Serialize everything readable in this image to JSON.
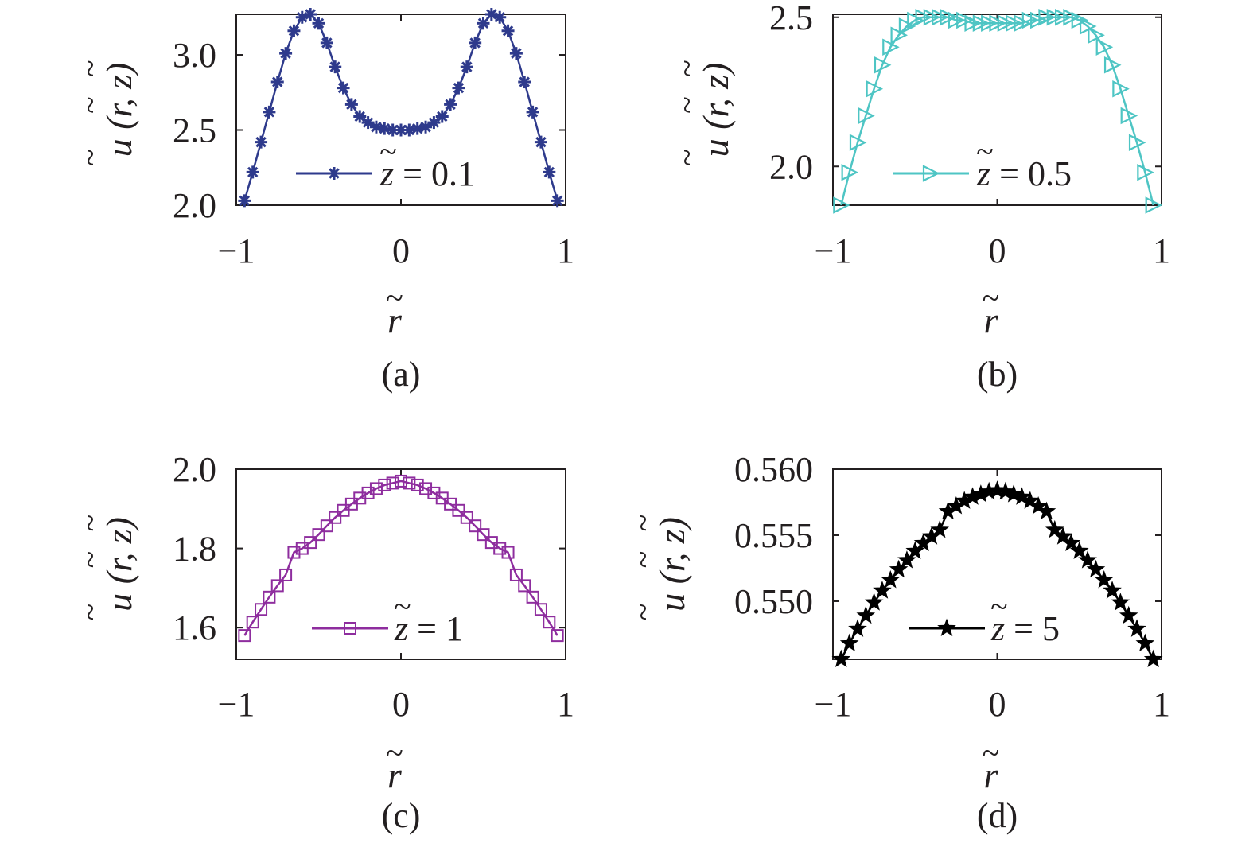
{
  "chart_data": [
    {
      "id": "a",
      "type": "line",
      "caption": "(a)",
      "xlabel": "r",
      "ylabel": "u (r, z)",
      "xlim": [
        -1,
        1
      ],
      "ylim": [
        2.0,
        3.27
      ],
      "xticks": [
        -1,
        0,
        1
      ],
      "xtick_labels": [
        "−1",
        "0",
        "1"
      ],
      "yticks": [
        2.0,
        2.5,
        3.0
      ],
      "ytick_labels": [
        "2.0",
        "2.5",
        "3.0"
      ],
      "legend_position": "bottom-right",
      "series": [
        {
          "name": "z = 0.1",
          "legend_var": "z",
          "legend_rest": " = 0.1",
          "color": "#2e3a8c",
          "marker": "asterisk",
          "x": [
            -0.95,
            -0.9,
            -0.85,
            -0.8,
            -0.75,
            -0.7,
            -0.65,
            -0.6,
            -0.55,
            -0.5,
            -0.45,
            -0.4,
            -0.35,
            -0.3,
            -0.25,
            -0.2,
            -0.15,
            -0.1,
            -0.05,
            0,
            0.05,
            0.1,
            0.15,
            0.2,
            0.25,
            0.3,
            0.35,
            0.4,
            0.45,
            0.5,
            0.55,
            0.6,
            0.65,
            0.7,
            0.75,
            0.8,
            0.85,
            0.9,
            0.95
          ],
          "y": [
            2.03,
            2.22,
            2.42,
            2.62,
            2.82,
            3.01,
            3.16,
            3.25,
            3.27,
            3.21,
            3.08,
            2.92,
            2.78,
            2.67,
            2.59,
            2.55,
            2.52,
            2.51,
            2.5,
            2.5,
            2.5,
            2.51,
            2.52,
            2.55,
            2.59,
            2.67,
            2.78,
            2.92,
            3.08,
            3.21,
            3.27,
            3.25,
            3.16,
            3.01,
            2.82,
            2.62,
            2.42,
            2.22,
            2.03
          ]
        }
      ]
    },
    {
      "id": "b",
      "type": "line",
      "caption": "(b)",
      "xlabel": "r",
      "ylabel": "u (r, z)",
      "xlim": [
        -1,
        1
      ],
      "ylim": [
        1.87,
        2.51
      ],
      "xticks": [
        -1,
        0,
        1
      ],
      "xtick_labels": [
        "−1",
        "0",
        "1"
      ],
      "yticks": [
        2.0,
        2.5
      ],
      "ytick_labels": [
        "2.0",
        "2.5"
      ],
      "legend_position": "bottom-right",
      "series": [
        {
          "name": "z = 0.5",
          "legend_var": "z",
          "legend_rest": " = 0.5",
          "color": "#4ec5c4",
          "marker": "triangle-right",
          "x": [
            -0.95,
            -0.9,
            -0.85,
            -0.8,
            -0.75,
            -0.7,
            -0.65,
            -0.6,
            -0.55,
            -0.5,
            -0.45,
            -0.4,
            -0.35,
            -0.3,
            -0.25,
            -0.2,
            -0.15,
            -0.1,
            -0.05,
            0,
            0.05,
            0.1,
            0.15,
            0.2,
            0.25,
            0.3,
            0.35,
            0.4,
            0.45,
            0.5,
            0.55,
            0.6,
            0.65,
            0.7,
            0.75,
            0.8,
            0.85,
            0.9,
            0.95
          ],
          "y": [
            1.87,
            1.98,
            2.08,
            2.17,
            2.26,
            2.34,
            2.4,
            2.44,
            2.47,
            2.49,
            2.5,
            2.5,
            2.5,
            2.5,
            2.49,
            2.49,
            2.48,
            2.48,
            2.48,
            2.48,
            2.48,
            2.48,
            2.48,
            2.49,
            2.49,
            2.5,
            2.5,
            2.5,
            2.5,
            2.49,
            2.47,
            2.44,
            2.4,
            2.34,
            2.26,
            2.17,
            2.08,
            1.98,
            1.87
          ]
        }
      ]
    },
    {
      "id": "c",
      "type": "line",
      "caption": "(c)",
      "xlabel": "r",
      "ylabel": "u (r, z)",
      "xlim": [
        -1,
        1
      ],
      "ylim": [
        1.52,
        2.0
      ],
      "xticks": [
        -1,
        0,
        1
      ],
      "xtick_labels": [
        "−1",
        "0",
        "1"
      ],
      "yticks": [
        1.6,
        1.8,
        2.0
      ],
      "ytick_labels": [
        "1.6",
        "1.8",
        "2.0"
      ],
      "legend_position": "bottom-right",
      "series": [
        {
          "name": "z = 1",
          "legend_var": "z",
          "legend_rest": " = 1",
          "color": "#8e2d9e",
          "marker": "square",
          "x": [
            -0.95,
            -0.9,
            -0.85,
            -0.8,
            -0.75,
            -0.7,
            -0.65,
            -0.6,
            -0.55,
            -0.5,
            -0.45,
            -0.4,
            -0.35,
            -0.3,
            -0.25,
            -0.2,
            -0.15,
            -0.1,
            -0.05,
            0,
            0.05,
            0.1,
            0.15,
            0.2,
            0.25,
            0.3,
            0.35,
            0.4,
            0.45,
            0.5,
            0.55,
            0.6,
            0.65,
            0.7,
            0.75,
            0.8,
            0.85,
            0.9,
            0.95
          ],
          "y": [
            1.58,
            1.614,
            1.646,
            1.677,
            1.706,
            1.733,
            1.79,
            1.8,
            1.815,
            1.835,
            1.857,
            1.878,
            1.896,
            1.912,
            1.927,
            1.94,
            1.951,
            1.96,
            1.965,
            1.97,
            1.965,
            1.96,
            1.951,
            1.94,
            1.927,
            1.912,
            1.896,
            1.878,
            1.857,
            1.835,
            1.815,
            1.8,
            1.79,
            1.733,
            1.706,
            1.677,
            1.646,
            1.614,
            1.58
          ]
        }
      ]
    },
    {
      "id": "d",
      "type": "line",
      "caption": "(d)",
      "xlabel": "r",
      "ylabel": "u (r, z)",
      "xlim": [
        -1,
        1
      ],
      "ylim": [
        0.5456,
        0.56
      ],
      "xticks": [
        -1,
        0,
        1
      ],
      "xtick_labels": [
        "−1",
        "0",
        "1"
      ],
      "yticks": [
        0.55,
        0.555,
        0.56
      ],
      "ytick_labels": [
        "0.550",
        "0.555",
        "0.560"
      ],
      "legend_position": "bottom-right",
      "series": [
        {
          "name": "z = 5",
          "legend_var": "z",
          "legend_rest": " = 5",
          "color": "#000000",
          "marker": "star",
          "x": [
            -0.95,
            -0.9,
            -0.85,
            -0.8,
            -0.75,
            -0.7,
            -0.65,
            -0.6,
            -0.55,
            -0.5,
            -0.45,
            -0.4,
            -0.35,
            -0.3,
            -0.25,
            -0.2,
            -0.15,
            -0.1,
            -0.05,
            0,
            0.05,
            0.1,
            0.15,
            0.2,
            0.25,
            0.3,
            0.35,
            0.4,
            0.45,
            0.5,
            0.55,
            0.6,
            0.65,
            0.7,
            0.75,
            0.8,
            0.85,
            0.9,
            0.95
          ],
          "y": [
            0.5456,
            0.5468,
            0.5479,
            0.5489,
            0.5499,
            0.5508,
            0.5516,
            0.5524,
            0.5531,
            0.5538,
            0.5544,
            0.5549,
            0.5554,
            0.5568,
            0.5572,
            0.5576,
            0.5579,
            0.5581,
            0.5583,
            0.5584,
            0.5583,
            0.5581,
            0.5579,
            0.5576,
            0.5572,
            0.5568,
            0.5554,
            0.5549,
            0.5544,
            0.5538,
            0.5531,
            0.5524,
            0.5516,
            0.5508,
            0.5499,
            0.5489,
            0.5479,
            0.5468,
            0.5456
          ]
        }
      ]
    }
  ]
}
